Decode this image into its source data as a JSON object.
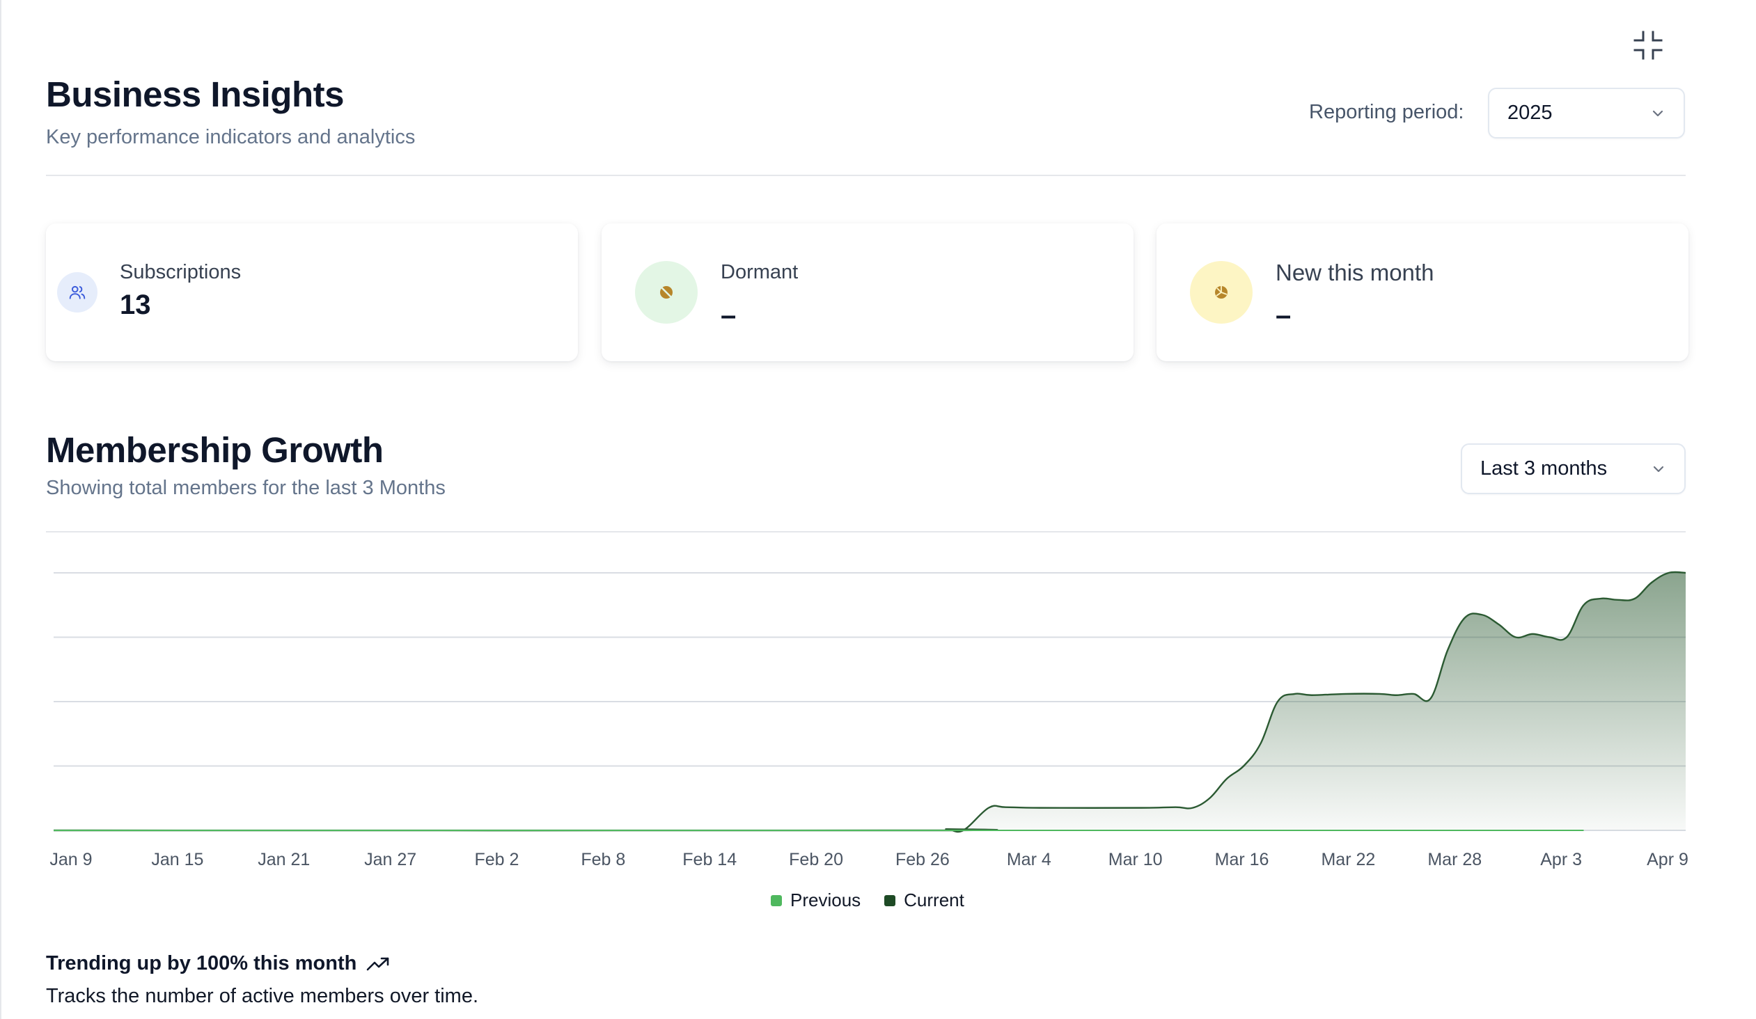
{
  "header": {
    "title": "Business Insights",
    "subtitle": "Key performance indicators and analytics",
    "period_label": "Reporting period:",
    "period_value": "2025"
  },
  "stats": [
    {
      "label": "Subscriptions",
      "value": "13",
      "icon": "users-icon",
      "icon_bg": "#e6edfb",
      "icon_color": "#3b5bdb"
    },
    {
      "label": "Dormant",
      "value": "–",
      "icon": "dormant-icon",
      "icon_bg": "#e3f6e5",
      "icon_color": "#b7862a"
    },
    {
      "label": "New this month",
      "value": "–",
      "icon": "new-icon",
      "icon_bg": "#fdf5c4",
      "icon_color": "#b7862a"
    }
  ],
  "growth": {
    "title": "Membership Growth",
    "subtitle": "Showing total members for the last 3 Months",
    "range_value": "Last 3 months"
  },
  "chart_data": {
    "type": "area",
    "title": "Membership Growth",
    "x_tick_labels": [
      "Jan 9",
      "Jan 15",
      "Jan 21",
      "Jan 27",
      "Feb 2",
      "Feb 8",
      "Feb 14",
      "Feb 20",
      "Feb 26",
      "Mar 4",
      "Mar 10",
      "Mar 16",
      "Mar 22",
      "Mar 28",
      "Apr 3",
      "Apr 9"
    ],
    "ylim": [
      0,
      4
    ],
    "grid": true,
    "legend": "bottom-center",
    "series": [
      {
        "name": "Previous",
        "color": "#4fb85e",
        "points": [
          [
            0,
            0
          ],
          [
            90,
            0
          ]
        ]
      },
      {
        "name": "Current",
        "color": "#2b5a32",
        "points": [
          [
            0,
            0
          ],
          [
            51,
            0
          ],
          [
            52.5,
            0.02
          ],
          [
            53.5,
            0
          ],
          [
            55,
            0.35
          ],
          [
            56,
            0.36
          ],
          [
            58,
            0.35
          ],
          [
            64,
            0.35
          ],
          [
            66,
            0.36
          ],
          [
            67,
            0.35
          ],
          [
            68,
            0.5
          ],
          [
            69,
            0.8
          ],
          [
            70,
            1.0
          ],
          [
            71,
            1.35
          ],
          [
            72,
            2.0
          ],
          [
            73,
            2.12
          ],
          [
            74,
            2.1
          ],
          [
            76,
            2.12
          ],
          [
            78,
            2.12
          ],
          [
            79,
            2.1
          ],
          [
            80,
            2.12
          ],
          [
            81,
            2.05
          ],
          [
            82,
            2.8
          ],
          [
            83,
            3.3
          ],
          [
            84,
            3.35
          ],
          [
            85,
            3.2
          ],
          [
            86,
            3.0
          ],
          [
            87,
            3.05
          ],
          [
            88,
            3.0
          ],
          [
            89,
            3.0
          ],
          [
            90,
            3.5
          ],
          [
            91,
            3.6
          ],
          [
            92,
            3.58
          ],
          [
            93,
            3.6
          ],
          [
            94,
            3.85
          ],
          [
            95,
            4.0
          ],
          [
            96,
            4.0
          ]
        ]
      }
    ]
  },
  "legend": {
    "previous": "Previous",
    "current": "Current"
  },
  "footer": {
    "trend": "Trending up by 100% this month",
    "note": "Tracks the number of active members over time."
  }
}
